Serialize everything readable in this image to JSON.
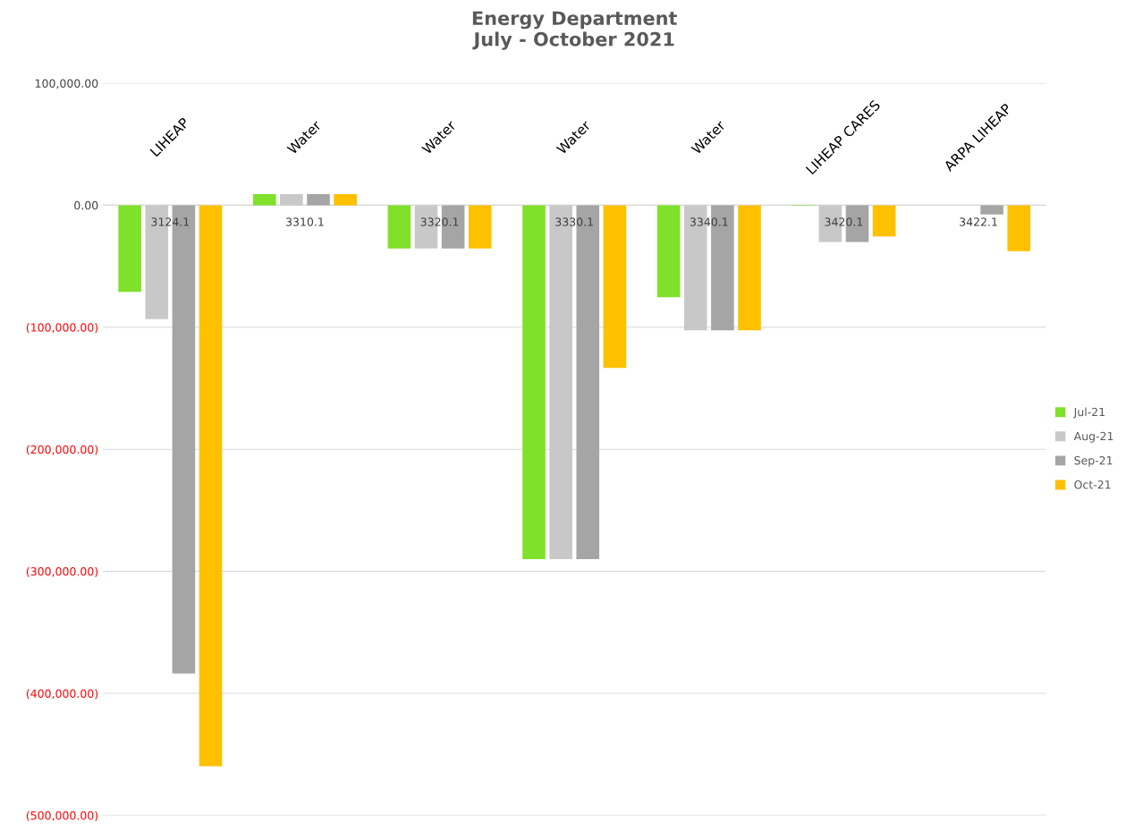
{
  "chart_data": {
    "type": "bar",
    "title": "Energy Department\nJuly - October 2021",
    "categories": [
      "3124.1",
      "3310.1",
      "3320.1",
      "3330.1",
      "3340.1",
      "3420.1",
      "3422.1"
    ],
    "series": [
      {
        "name": "Jul-21",
        "color": "#7fe12a",
        "values": [
          -71000,
          9000,
          -35400,
          -290100,
          -75400,
          -500,
          null
        ]
      },
      {
        "name": "Aug-21",
        "color": "#c8c8c8",
        "values": [
          -93400,
          9000,
          -35400,
          -290100,
          -102500,
          -30100,
          null
        ]
      },
      {
        "name": "Sep-21",
        "color": "#a5a5a5",
        "values": [
          -383600,
          9000,
          -35400,
          -290100,
          -102500,
          -30100,
          -7500
        ]
      },
      {
        "name": "Oct-21",
        "color": "#ffc000",
        "values": [
          -459700,
          9000,
          -35400,
          -133400,
          -102500,
          -25600,
          -37700
        ]
      }
    ],
    "annotations": [
      "LIHEAP",
      "Water",
      "Water",
      "Water",
      "Water",
      "LIHEAP CARES",
      "ARPA LIHEAP"
    ],
    "ylim": [
      -500000,
      100000
    ],
    "yticks": [
      {
        "value": -500000,
        "label": "(500,000.00)"
      },
      {
        "value": -400000,
        "label": "(400,000.00)"
      },
      {
        "value": -300000,
        "label": "(300,000.00)"
      },
      {
        "value": -200000,
        "label": "(200,000.00)"
      },
      {
        "value": -100000,
        "label": "(100,000.00)"
      },
      {
        "value": 0,
        "label": "0.00"
      },
      {
        "value": 100000,
        "label": "100,000.00"
      }
    ],
    "grid": "y",
    "legend": "right"
  }
}
